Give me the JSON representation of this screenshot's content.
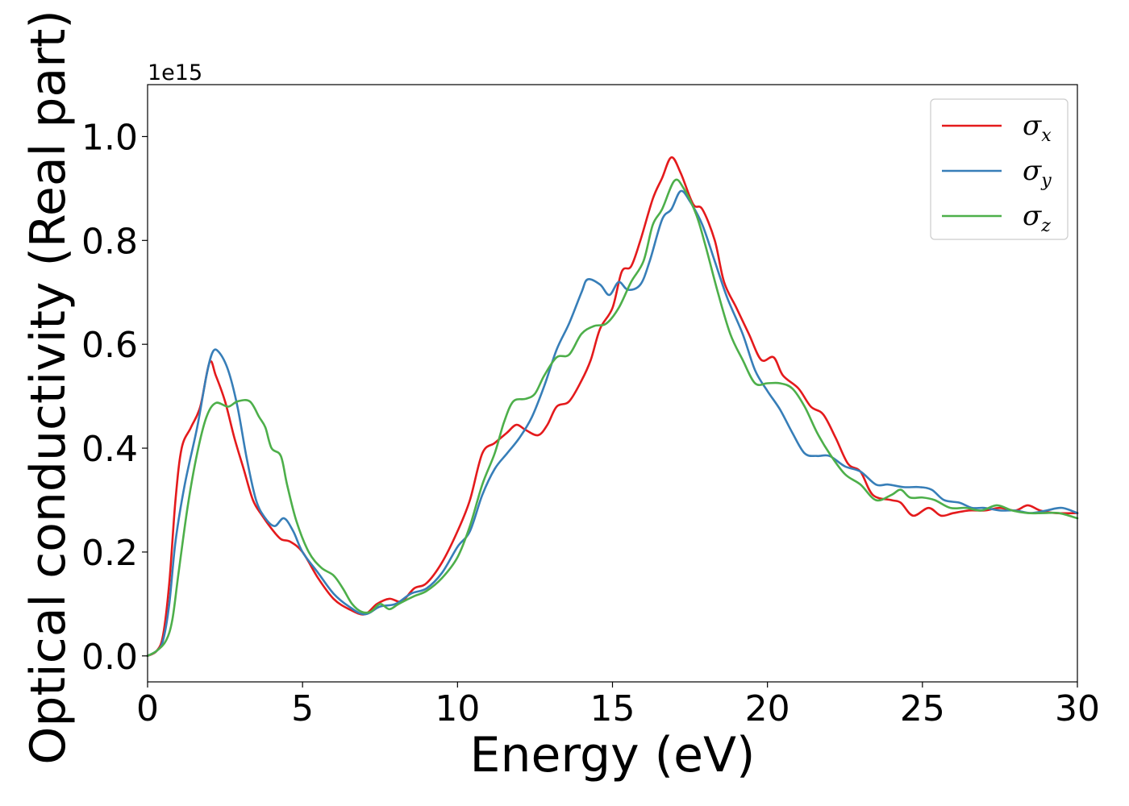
{
  "chart_data": {
    "type": "line",
    "xlabel": "Energy (eV)",
    "ylabel": "Optical conductivity (Real part)",
    "y_offset_text": "1e15",
    "xlim": [
      0,
      30
    ],
    "ylim": [
      -0.05,
      1.1
    ],
    "x_ticks": [
      0,
      5,
      10,
      15,
      20,
      25,
      30
    ],
    "x_tick_labels": [
      "0",
      "5",
      "10",
      "15",
      "20",
      "25",
      "30"
    ],
    "y_ticks": [
      0.0,
      0.2,
      0.4,
      0.6,
      0.8,
      1.0
    ],
    "y_tick_labels": [
      "0.0",
      "0.2",
      "0.4",
      "0.6",
      "0.8",
      "1.0"
    ],
    "grid": false,
    "legend_position": "top-right",
    "series": [
      {
        "name": "σ",
        "subscript": "x",
        "color": "#e41a1c",
        "points": [
          [
            0,
            0
          ],
          [
            0.3,
            0.01
          ],
          [
            0.5,
            0.04
          ],
          [
            0.7,
            0.14
          ],
          [
            0.9,
            0.3
          ],
          [
            1.1,
            0.4
          ],
          [
            1.4,
            0.44
          ],
          [
            1.7,
            0.48
          ],
          [
            2.0,
            0.565
          ],
          [
            2.2,
            0.54
          ],
          [
            2.5,
            0.49
          ],
          [
            2.8,
            0.42
          ],
          [
            3.1,
            0.36
          ],
          [
            3.4,
            0.3
          ],
          [
            3.7,
            0.27
          ],
          [
            4.0,
            0.245
          ],
          [
            4.3,
            0.225
          ],
          [
            4.6,
            0.22
          ],
          [
            5.0,
            0.2
          ],
          [
            5.5,
            0.15
          ],
          [
            6.0,
            0.11
          ],
          [
            6.5,
            0.09
          ],
          [
            7.0,
            0.08
          ],
          [
            7.4,
            0.1
          ],
          [
            7.8,
            0.11
          ],
          [
            8.2,
            0.105
          ],
          [
            8.6,
            0.13
          ],
          [
            9.0,
            0.14
          ],
          [
            9.5,
            0.18
          ],
          [
            10.0,
            0.24
          ],
          [
            10.4,
            0.3
          ],
          [
            10.8,
            0.39
          ],
          [
            11.2,
            0.41
          ],
          [
            11.6,
            0.43
          ],
          [
            11.9,
            0.445
          ],
          [
            12.2,
            0.435
          ],
          [
            12.6,
            0.425
          ],
          [
            12.9,
            0.445
          ],
          [
            13.2,
            0.48
          ],
          [
            13.6,
            0.49
          ],
          [
            14.0,
            0.53
          ],
          [
            14.3,
            0.57
          ],
          [
            14.6,
            0.63
          ],
          [
            15.0,
            0.67
          ],
          [
            15.3,
            0.74
          ],
          [
            15.6,
            0.75
          ],
          [
            15.9,
            0.8
          ],
          [
            16.3,
            0.88
          ],
          [
            16.6,
            0.92
          ],
          [
            16.9,
            0.96
          ],
          [
            17.2,
            0.93
          ],
          [
            17.6,
            0.87
          ],
          [
            17.9,
            0.86
          ],
          [
            18.3,
            0.8
          ],
          [
            18.6,
            0.72
          ],
          [
            19.0,
            0.67
          ],
          [
            19.4,
            0.62
          ],
          [
            19.8,
            0.57
          ],
          [
            20.2,
            0.575
          ],
          [
            20.5,
            0.54
          ],
          [
            21.0,
            0.515
          ],
          [
            21.4,
            0.48
          ],
          [
            21.8,
            0.465
          ],
          [
            22.2,
            0.42
          ],
          [
            22.6,
            0.37
          ],
          [
            23.0,
            0.355
          ],
          [
            23.4,
            0.31
          ],
          [
            24.0,
            0.3
          ],
          [
            24.3,
            0.295
          ],
          [
            24.7,
            0.27
          ],
          [
            25.2,
            0.285
          ],
          [
            25.6,
            0.27
          ],
          [
            26.0,
            0.275
          ],
          [
            26.5,
            0.28
          ],
          [
            27.0,
            0.28
          ],
          [
            27.5,
            0.285
          ],
          [
            28.0,
            0.28
          ],
          [
            28.4,
            0.29
          ],
          [
            28.8,
            0.28
          ],
          [
            29.3,
            0.275
          ],
          [
            30.0,
            0.275
          ]
        ]
      },
      {
        "name": "σ",
        "subscript": "y",
        "color": "#377eb8",
        "points": [
          [
            0,
            0
          ],
          [
            0.3,
            0.01
          ],
          [
            0.5,
            0.03
          ],
          [
            0.7,
            0.1
          ],
          [
            0.9,
            0.22
          ],
          [
            1.2,
            0.33
          ],
          [
            1.6,
            0.44
          ],
          [
            1.9,
            0.54
          ],
          [
            2.1,
            0.585
          ],
          [
            2.3,
            0.585
          ],
          [
            2.6,
            0.55
          ],
          [
            2.9,
            0.48
          ],
          [
            3.2,
            0.38
          ],
          [
            3.5,
            0.3
          ],
          [
            3.8,
            0.265
          ],
          [
            4.1,
            0.25
          ],
          [
            4.4,
            0.265
          ],
          [
            4.7,
            0.24
          ],
          [
            5.0,
            0.2
          ],
          [
            5.5,
            0.16
          ],
          [
            6.0,
            0.12
          ],
          [
            6.5,
            0.095
          ],
          [
            7.0,
            0.08
          ],
          [
            7.5,
            0.095
          ],
          [
            8.0,
            0.1
          ],
          [
            8.5,
            0.12
          ],
          [
            9.0,
            0.13
          ],
          [
            9.5,
            0.16
          ],
          [
            10.0,
            0.21
          ],
          [
            10.4,
            0.24
          ],
          [
            10.8,
            0.31
          ],
          [
            11.2,
            0.36
          ],
          [
            11.6,
            0.39
          ],
          [
            12.0,
            0.42
          ],
          [
            12.4,
            0.46
          ],
          [
            12.8,
            0.52
          ],
          [
            13.2,
            0.59
          ],
          [
            13.6,
            0.64
          ],
          [
            14.0,
            0.7
          ],
          [
            14.2,
            0.725
          ],
          [
            14.6,
            0.715
          ],
          [
            14.9,
            0.695
          ],
          [
            15.2,
            0.72
          ],
          [
            15.5,
            0.705
          ],
          [
            15.9,
            0.715
          ],
          [
            16.2,
            0.76
          ],
          [
            16.6,
            0.84
          ],
          [
            16.9,
            0.86
          ],
          [
            17.2,
            0.895
          ],
          [
            17.5,
            0.875
          ],
          [
            17.9,
            0.83
          ],
          [
            18.3,
            0.76
          ],
          [
            18.7,
            0.69
          ],
          [
            19.2,
            0.62
          ],
          [
            19.6,
            0.55
          ],
          [
            20.0,
            0.51
          ],
          [
            20.4,
            0.475
          ],
          [
            20.8,
            0.43
          ],
          [
            21.2,
            0.39
          ],
          [
            21.6,
            0.385
          ],
          [
            22.0,
            0.385
          ],
          [
            22.5,
            0.365
          ],
          [
            23.0,
            0.355
          ],
          [
            23.5,
            0.33
          ],
          [
            23.9,
            0.33
          ],
          [
            24.4,
            0.325
          ],
          [
            24.9,
            0.325
          ],
          [
            25.3,
            0.32
          ],
          [
            25.7,
            0.3
          ],
          [
            26.2,
            0.295
          ],
          [
            26.6,
            0.285
          ],
          [
            27.0,
            0.285
          ],
          [
            27.5,
            0.28
          ],
          [
            28.0,
            0.28
          ],
          [
            28.5,
            0.275
          ],
          [
            29.0,
            0.28
          ],
          [
            29.5,
            0.285
          ],
          [
            30.0,
            0.275
          ]
        ]
      },
      {
        "name": "σ",
        "subscript": "z",
        "color": "#4daf4a",
        "points": [
          [
            0,
            0
          ],
          [
            0.3,
            0.01
          ],
          [
            0.6,
            0.03
          ],
          [
            0.8,
            0.07
          ],
          [
            1.0,
            0.16
          ],
          [
            1.3,
            0.29
          ],
          [
            1.6,
            0.39
          ],
          [
            1.9,
            0.46
          ],
          [
            2.2,
            0.487
          ],
          [
            2.6,
            0.48
          ],
          [
            2.9,
            0.49
          ],
          [
            3.3,
            0.49
          ],
          [
            3.6,
            0.46
          ],
          [
            3.8,
            0.44
          ],
          [
            4.0,
            0.4
          ],
          [
            4.3,
            0.385
          ],
          [
            4.5,
            0.33
          ],
          [
            4.8,
            0.26
          ],
          [
            5.2,
            0.2
          ],
          [
            5.6,
            0.17
          ],
          [
            6.0,
            0.155
          ],
          [
            6.3,
            0.13
          ],
          [
            6.6,
            0.1
          ],
          [
            6.9,
            0.085
          ],
          [
            7.2,
            0.085
          ],
          [
            7.5,
            0.1
          ],
          [
            7.8,
            0.09
          ],
          [
            8.1,
            0.1
          ],
          [
            8.6,
            0.115
          ],
          [
            9.0,
            0.125
          ],
          [
            9.5,
            0.15
          ],
          [
            10.0,
            0.19
          ],
          [
            10.4,
            0.25
          ],
          [
            10.8,
            0.33
          ],
          [
            11.2,
            0.39
          ],
          [
            11.5,
            0.45
          ],
          [
            11.8,
            0.49
          ],
          [
            12.2,
            0.495
          ],
          [
            12.5,
            0.505
          ],
          [
            12.8,
            0.54
          ],
          [
            13.2,
            0.575
          ],
          [
            13.6,
            0.58
          ],
          [
            14.0,
            0.62
          ],
          [
            14.4,
            0.635
          ],
          [
            14.8,
            0.64
          ],
          [
            15.2,
            0.67
          ],
          [
            15.6,
            0.72
          ],
          [
            16.0,
            0.76
          ],
          [
            16.3,
            0.83
          ],
          [
            16.6,
            0.86
          ],
          [
            17.0,
            0.915
          ],
          [
            17.3,
            0.9
          ],
          [
            17.7,
            0.85
          ],
          [
            18.0,
            0.79
          ],
          [
            18.4,
            0.7
          ],
          [
            18.8,
            0.62
          ],
          [
            19.2,
            0.57
          ],
          [
            19.6,
            0.525
          ],
          [
            20.0,
            0.525
          ],
          [
            20.4,
            0.525
          ],
          [
            20.8,
            0.515
          ],
          [
            21.2,
            0.48
          ],
          [
            21.6,
            0.43
          ],
          [
            22.0,
            0.39
          ],
          [
            22.5,
            0.35
          ],
          [
            23.0,
            0.33
          ],
          [
            23.5,
            0.3
          ],
          [
            24.0,
            0.31
          ],
          [
            24.3,
            0.32
          ],
          [
            24.6,
            0.305
          ],
          [
            25.0,
            0.305
          ],
          [
            25.4,
            0.3
          ],
          [
            25.9,
            0.285
          ],
          [
            26.4,
            0.285
          ],
          [
            26.9,
            0.28
          ],
          [
            27.4,
            0.29
          ],
          [
            27.9,
            0.28
          ],
          [
            28.4,
            0.275
          ],
          [
            28.9,
            0.275
          ],
          [
            29.4,
            0.275
          ],
          [
            30.0,
            0.265
          ]
        ]
      }
    ]
  }
}
